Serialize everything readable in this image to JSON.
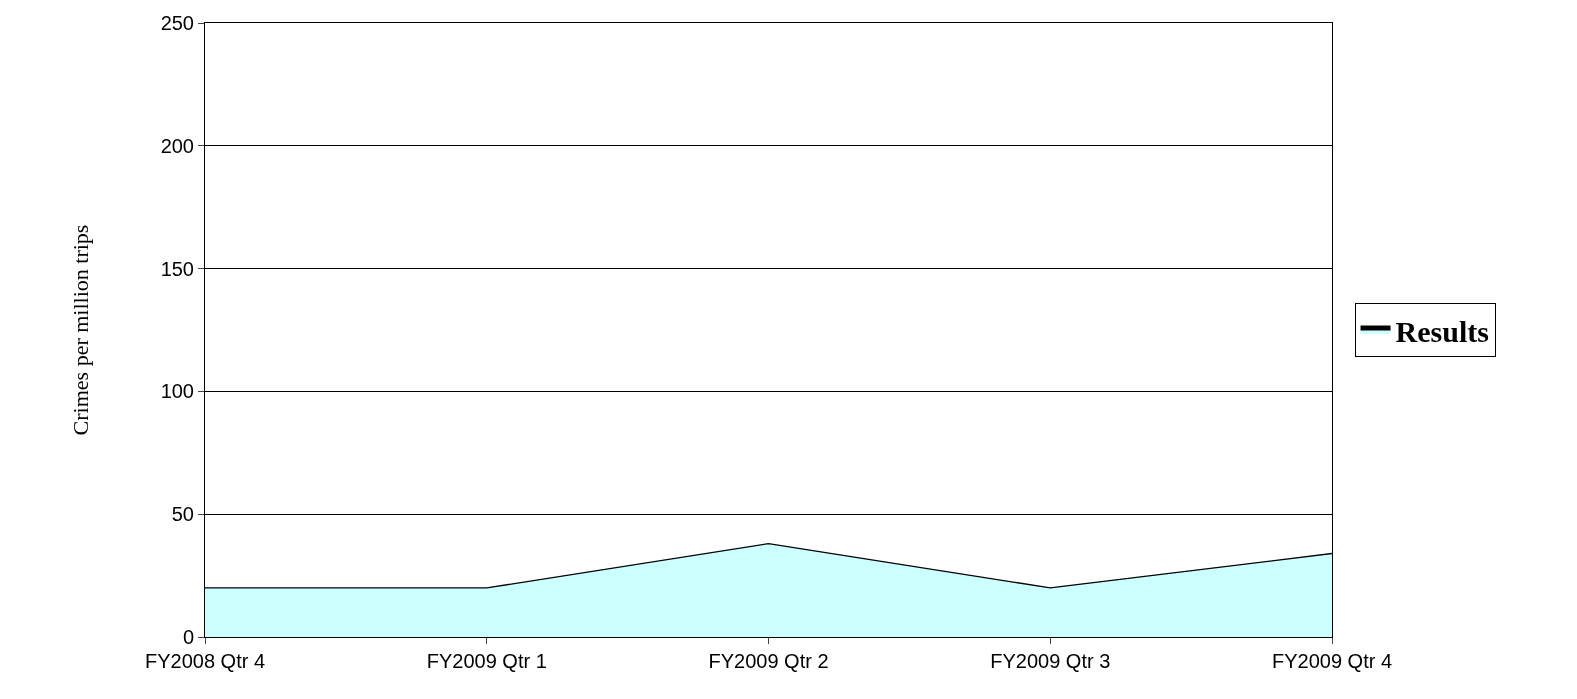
{
  "chart_data": {
    "type": "area",
    "ylabel": "Crimes per million trips",
    "categories": [
      "FY2008 Qtr 4",
      "FY2009 Qtr 1",
      "FY2009 Qtr 2",
      "FY2009 Qtr 3",
      "FY2009 Qtr 4"
    ],
    "series": [
      {
        "name": "Results",
        "color": "#ccffff",
        "values": [
          20,
          20,
          38,
          20,
          34
        ]
      }
    ],
    "ylim": [
      0,
      250
    ],
    "yticks": [
      0,
      50,
      100,
      150,
      200,
      250
    ],
    "grid": "y",
    "legend": "right"
  }
}
